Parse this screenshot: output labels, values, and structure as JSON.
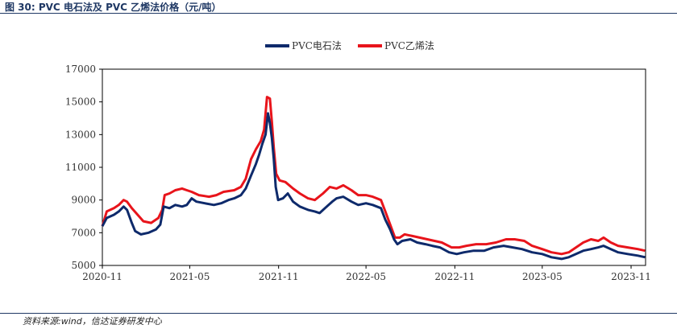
{
  "figure": {
    "title": "图 30:  PVC 电石法及 PVC 乙烯法价格（元/吨）",
    "source": "资料来源:wind，信达证券研发中心"
  },
  "colors": {
    "series_calcium_carbide": "#0e2a6b",
    "series_ethylene": "#e8141b"
  },
  "chart_data": {
    "type": "line",
    "title": "",
    "xlabel": "",
    "ylabel": "",
    "ylim": [
      5000,
      17000
    ],
    "yticks": [
      5000,
      7000,
      9000,
      11000,
      13000,
      15000,
      17000
    ],
    "xlim": [
      "2020-11",
      "2023-12"
    ],
    "xticks": [
      "2020-11",
      "2021-05",
      "2021-11",
      "2022-05",
      "2022-11",
      "2023-05",
      "2023-11"
    ],
    "grid": false,
    "legend": "top-center",
    "series": [
      {
        "name": "PVC电石法",
        "points": [
          [
            "2020-11-01",
            7400
          ],
          [
            "2020-11-10",
            7900
          ],
          [
            "2020-11-25",
            8100
          ],
          [
            "2020-12-05",
            8300
          ],
          [
            "2020-12-15",
            8600
          ],
          [
            "2020-12-22",
            8400
          ],
          [
            "2021-01-01",
            7600
          ],
          [
            "2021-01-08",
            7100
          ],
          [
            "2021-01-20",
            6900
          ],
          [
            "2021-02-05",
            7000
          ],
          [
            "2021-02-20",
            7200
          ],
          [
            "2021-03-01",
            7500
          ],
          [
            "2021-03-08",
            8600
          ],
          [
            "2021-03-20",
            8500
          ],
          [
            "2021-04-01",
            8700
          ],
          [
            "2021-04-15",
            8600
          ],
          [
            "2021-04-25",
            8700
          ],
          [
            "2021-05-05",
            9100
          ],
          [
            "2021-05-15",
            8900
          ],
          [
            "2021-06-01",
            8800
          ],
          [
            "2021-06-20",
            8700
          ],
          [
            "2021-07-05",
            8800
          ],
          [
            "2021-07-20",
            9000
          ],
          [
            "2021-08-01",
            9100
          ],
          [
            "2021-08-15",
            9300
          ],
          [
            "2021-08-25",
            9700
          ],
          [
            "2021-09-05",
            10500
          ],
          [
            "2021-09-15",
            11200
          ],
          [
            "2021-09-22",
            11800
          ],
          [
            "2021-09-28",
            12400
          ],
          [
            "2021-10-05",
            13000
          ],
          [
            "2021-10-10",
            14300
          ],
          [
            "2021-10-14",
            13700
          ],
          [
            "2021-10-18",
            12800
          ],
          [
            "2021-10-22",
            11500
          ],
          [
            "2021-10-26",
            9800
          ],
          [
            "2021-10-31",
            9000
          ],
          [
            "2021-11-10",
            9100
          ],
          [
            "2021-11-20",
            9400
          ],
          [
            "2021-12-01",
            8900
          ],
          [
            "2021-12-15",
            8600
          ],
          [
            "2022-01-01",
            8400
          ],
          [
            "2022-01-15",
            8300
          ],
          [
            "2022-01-25",
            8200
          ],
          [
            "2022-02-05",
            8500
          ],
          [
            "2022-02-20",
            8900
          ],
          [
            "2022-03-01",
            9100
          ],
          [
            "2022-03-15",
            9200
          ],
          [
            "2022-04-01",
            8900
          ],
          [
            "2022-04-15",
            8700
          ],
          [
            "2022-05-01",
            8800
          ],
          [
            "2022-05-15",
            8700
          ],
          [
            "2022-06-01",
            8500
          ],
          [
            "2022-06-10",
            7800
          ],
          [
            "2022-06-20",
            7200
          ],
          [
            "2022-06-28",
            6600
          ],
          [
            "2022-07-05",
            6300
          ],
          [
            "2022-07-15",
            6500
          ],
          [
            "2022-08-01",
            6600
          ],
          [
            "2022-08-15",
            6400
          ],
          [
            "2022-09-01",
            6300
          ],
          [
            "2022-09-15",
            6200
          ],
          [
            "2022-10-01",
            6100
          ],
          [
            "2022-10-20",
            5800
          ],
          [
            "2022-11-05",
            5700
          ],
          [
            "2022-11-20",
            5800
          ],
          [
            "2022-12-10",
            5900
          ],
          [
            "2023-01-01",
            5900
          ],
          [
            "2023-01-20",
            6100
          ],
          [
            "2023-02-10",
            6200
          ],
          [
            "2023-03-01",
            6100
          ],
          [
            "2023-03-20",
            6000
          ],
          [
            "2023-04-10",
            5800
          ],
          [
            "2023-05-01",
            5700
          ],
          [
            "2023-05-20",
            5500
          ],
          [
            "2023-06-10",
            5400
          ],
          [
            "2023-06-25",
            5500
          ],
          [
            "2023-07-10",
            5700
          ],
          [
            "2023-07-25",
            5900
          ],
          [
            "2023-08-10",
            6000
          ],
          [
            "2023-08-25",
            6100
          ],
          [
            "2023-09-05",
            6200
          ],
          [
            "2023-09-20",
            6000
          ],
          [
            "2023-10-05",
            5800
          ],
          [
            "2023-10-25",
            5700
          ],
          [
            "2023-11-15",
            5600
          ],
          [
            "2023-11-30",
            5500
          ]
        ]
      },
      {
        "name": "PVC乙烯法",
        "points": [
          [
            "2020-11-01",
            7400
          ],
          [
            "2020-11-10",
            8300
          ],
          [
            "2020-11-25",
            8500
          ],
          [
            "2020-12-05",
            8700
          ],
          [
            "2020-12-15",
            9000
          ],
          [
            "2020-12-22",
            8900
          ],
          [
            "2021-01-01",
            8500
          ],
          [
            "2021-01-10",
            8200
          ],
          [
            "2021-01-25",
            7700
          ],
          [
            "2021-02-10",
            7600
          ],
          [
            "2021-02-25",
            7900
          ],
          [
            "2021-03-05",
            8400
          ],
          [
            "2021-03-10",
            9300
          ],
          [
            "2021-03-20",
            9400
          ],
          [
            "2021-04-01",
            9600
          ],
          [
            "2021-04-15",
            9700
          ],
          [
            "2021-04-25",
            9600
          ],
          [
            "2021-05-05",
            9500
          ],
          [
            "2021-05-20",
            9300
          ],
          [
            "2021-06-10",
            9200
          ],
          [
            "2021-06-25",
            9300
          ],
          [
            "2021-07-10",
            9500
          ],
          [
            "2021-08-01",
            9600
          ],
          [
            "2021-08-15",
            9800
          ],
          [
            "2021-08-25",
            10300
          ],
          [
            "2021-09-05",
            11500
          ],
          [
            "2021-09-15",
            12100
          ],
          [
            "2021-09-25",
            12600
          ],
          [
            "2021-10-02",
            13300
          ],
          [
            "2021-10-08",
            15300
          ],
          [
            "2021-10-14",
            15200
          ],
          [
            "2021-10-18",
            13800
          ],
          [
            "2021-10-22",
            12200
          ],
          [
            "2021-10-27",
            10600
          ],
          [
            "2021-11-03",
            10200
          ],
          [
            "2021-11-15",
            10100
          ],
          [
            "2021-12-01",
            9700
          ],
          [
            "2021-12-15",
            9400
          ],
          [
            "2022-01-01",
            9100
          ],
          [
            "2022-01-15",
            9000
          ],
          [
            "2022-02-01",
            9400
          ],
          [
            "2022-02-15",
            9800
          ],
          [
            "2022-03-01",
            9700
          ],
          [
            "2022-03-15",
            9900
          ],
          [
            "2022-04-01",
            9600
          ],
          [
            "2022-04-15",
            9300
          ],
          [
            "2022-05-01",
            9300
          ],
          [
            "2022-05-15",
            9200
          ],
          [
            "2022-06-01",
            9000
          ],
          [
            "2022-06-10",
            8300
          ],
          [
            "2022-06-20",
            7500
          ],
          [
            "2022-06-30",
            6700
          ],
          [
            "2022-07-10",
            6700
          ],
          [
            "2022-07-20",
            6900
          ],
          [
            "2022-08-05",
            6800
          ],
          [
            "2022-08-20",
            6700
          ],
          [
            "2022-09-05",
            6600
          ],
          [
            "2022-09-20",
            6500
          ],
          [
            "2022-10-05",
            6400
          ],
          [
            "2022-10-25",
            6100
          ],
          [
            "2022-11-10",
            6100
          ],
          [
            "2022-11-25",
            6200
          ],
          [
            "2022-12-15",
            6300
          ],
          [
            "2023-01-05",
            6300
          ],
          [
            "2023-01-25",
            6400
          ],
          [
            "2023-02-15",
            6600
          ],
          [
            "2023-03-05",
            6600
          ],
          [
            "2023-03-25",
            6500
          ],
          [
            "2023-04-10",
            6200
          ],
          [
            "2023-05-01",
            6000
          ],
          [
            "2023-05-20",
            5800
          ],
          [
            "2023-06-10",
            5700
          ],
          [
            "2023-06-25",
            5800
          ],
          [
            "2023-07-10",
            6100
          ],
          [
            "2023-07-25",
            6400
          ],
          [
            "2023-08-10",
            6600
          ],
          [
            "2023-08-25",
            6500
          ],
          [
            "2023-09-05",
            6700
          ],
          [
            "2023-09-20",
            6400
          ],
          [
            "2023-10-05",
            6200
          ],
          [
            "2023-10-25",
            6100
          ],
          [
            "2023-11-15",
            6000
          ],
          [
            "2023-11-30",
            5900
          ]
        ]
      }
    ]
  }
}
